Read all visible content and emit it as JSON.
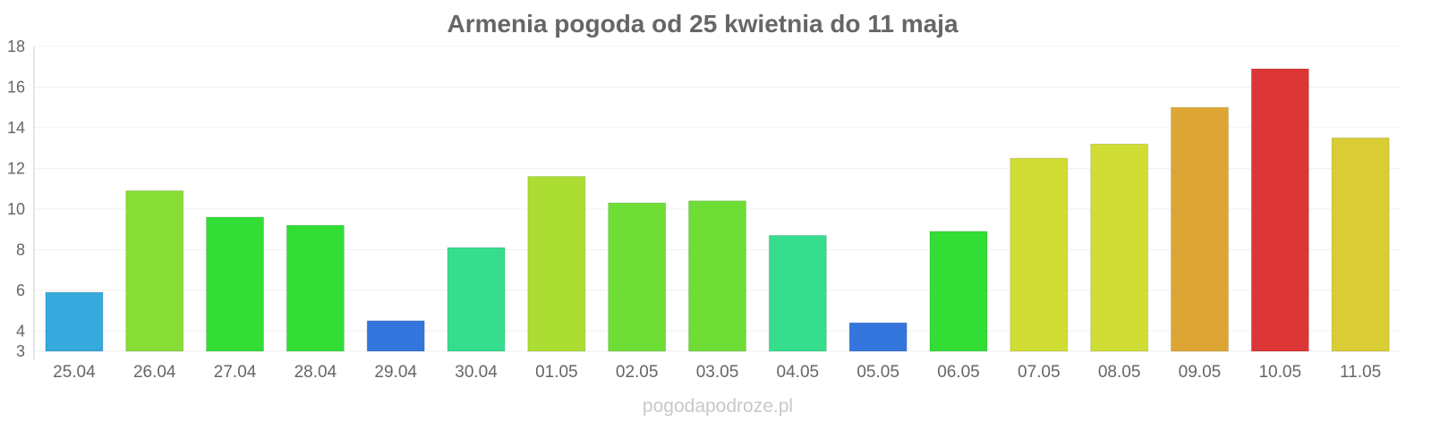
{
  "chart_data": {
    "type": "bar",
    "title": "Armenia pogoda od 25 kwietnia do 11 maja",
    "xlabel": "",
    "ylabel": "",
    "ylim": [
      3,
      18
    ],
    "yticks": [
      3,
      4,
      6,
      8,
      10,
      12,
      14,
      16,
      18
    ],
    "grid": true,
    "categories": [
      "25.04",
      "26.04",
      "27.04",
      "28.04",
      "29.04",
      "30.04",
      "01.05",
      "02.05",
      "03.05",
      "04.05",
      "05.05",
      "06.05",
      "07.05",
      "08.05",
      "09.05",
      "10.05",
      "11.05"
    ],
    "values": [
      5.9,
      10.9,
      9.6,
      9.2,
      4.5,
      8.1,
      11.6,
      10.3,
      10.4,
      8.7,
      4.4,
      8.9,
      12.5,
      13.2,
      15.0,
      16.9,
      13.5
    ],
    "colors": [
      "#36a9dd",
      "#87dd36",
      "#32dd36",
      "#32dd36",
      "#3476dd",
      "#36dd8c",
      "#acdd32",
      "#6edd36",
      "#6edd36",
      "#36dd8c",
      "#3476dd",
      "#32dd36",
      "#cfdd34",
      "#cfdd34",
      "#dda634",
      "#dd3636",
      "#dacc34"
    ],
    "watermark": "pogodapodroze.pl"
  }
}
